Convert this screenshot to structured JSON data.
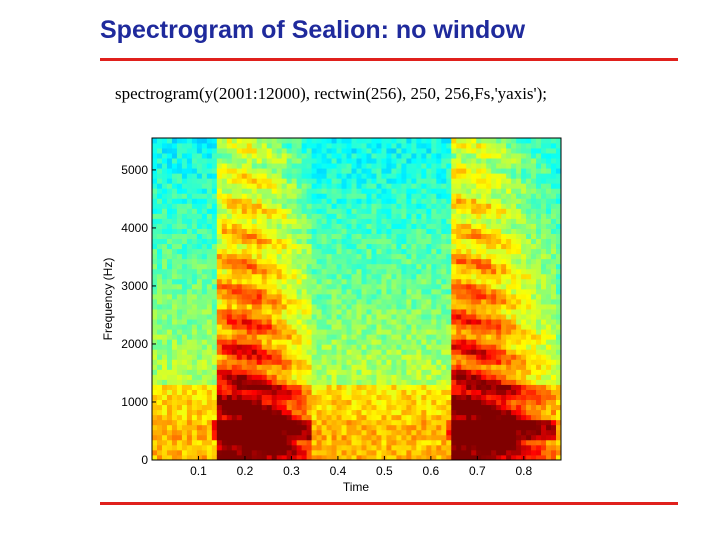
{
  "slide": {
    "title": "Spectrogram of Sealion: no window",
    "command": "spectrogram(y(2001:12000), rectwin(256), 250, 256,Fs,'yaxis');"
  },
  "colors": {
    "title": "#1f2a9c",
    "rule": "#e0201c",
    "colormap_low": "#40c8c8",
    "colormap_mid": "#f0e040",
    "colormap_high": "#8a0000"
  },
  "chart_data": {
    "type": "heatmap",
    "colormap": "jet",
    "xlabel": "Time",
    "ylabel": "Frequency (Hz)",
    "xlim": [
      0,
      0.88
    ],
    "ylim": [
      0,
      5550
    ],
    "xticks": [
      0.1,
      0.2,
      0.3,
      0.4,
      0.5,
      0.6,
      0.7,
      0.8
    ],
    "xtick_labels": [
      "0.1",
      "0.2",
      "0.3",
      "0.4",
      "0.5",
      "0.6",
      "0.7",
      "0.8"
    ],
    "yticks": [
      0,
      1000,
      2000,
      3000,
      4000,
      5000
    ],
    "ytick_labels": [
      "0",
      "1000",
      "2000",
      "3000",
      "4000",
      "5000"
    ],
    "grid": false,
    "vocalizations": [
      {
        "start": 0.14,
        "end": 0.34,
        "peak": 0.2
      },
      {
        "start": 0.64,
        "end": 0.87,
        "peak": 0.68
      }
    ],
    "fundamental_hz": 500
  }
}
